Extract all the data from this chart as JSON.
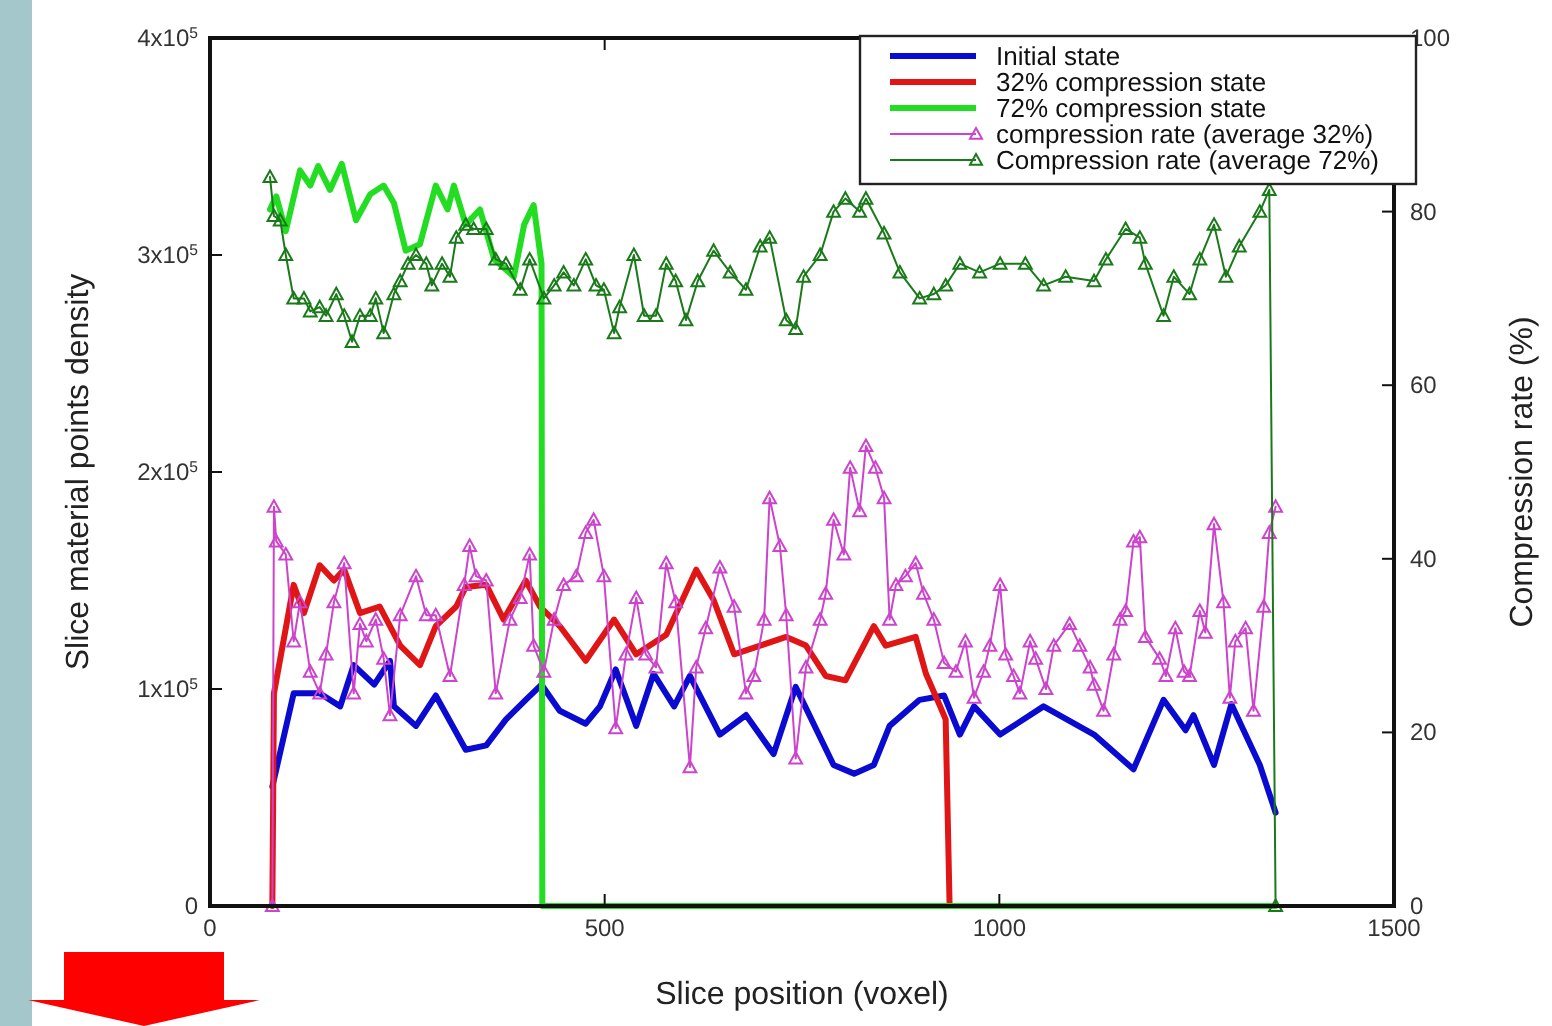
{
  "chart_data": {
    "type": "line",
    "xlabel": "Slice position (voxel)",
    "ylabel": "Slice material points density",
    "y2label": "Compression rate (%)",
    "xlim": [
      0,
      1500
    ],
    "xticks": [
      0,
      500,
      1000,
      1500
    ],
    "ylim": [
      0,
      400000
    ],
    "yticks": [
      0,
      {
        "value": 100000,
        "label": "1x10$^{5}$"
      },
      {
        "value": 200000,
        "label": "2x10$^{5}$"
      },
      {
        "value": 300000,
        "label": "3x10$^{5}$"
      },
      {
        "value": 400000,
        "label": "4x10$^{5}$"
      }
    ],
    "y2lim": [
      0,
      100
    ],
    "y2ticks": [
      0,
      20,
      40,
      60,
      80,
      100
    ],
    "grid": false,
    "legend": "top right",
    "series": [
      {
        "name": "Initial state",
        "color": "#0a0ad0",
        "marker": "none",
        "x": [
          79,
          106,
          139,
          165,
          182,
          208,
          228,
          233,
          261,
          286,
          324,
          350,
          375,
          400,
          420,
          443,
          476,
          494,
          514,
          540,
          562,
          588,
          608,
          646,
          679,
          714,
          742,
          790,
          816,
          841,
          861,
          899,
          930,
          950,
          968,
          1001,
          1056,
          1120,
          1170,
          1208,
          1236,
          1246,
          1272,
          1294,
          1330,
          1350
        ],
        "values": [
          55000,
          98000,
          98000,
          92000,
          111000,
          102000,
          113000,
          92000,
          83000,
          97000,
          72000,
          74000,
          86000,
          95000,
          102000,
          90000,
          84000,
          92000,
          109000,
          83000,
          107000,
          92000,
          106000,
          79000,
          88000,
          70000,
          101000,
          65000,
          61000,
          65000,
          83000,
          95000,
          97000,
          79000,
          92000,
          79000,
          92000,
          79000,
          63000,
          95000,
          81000,
          88000,
          65000,
          93000,
          65000,
          43000
        ]
      },
      {
        "name": "32% compression state",
        "color": "#e01515",
        "marker": "none",
        "x": [
          79,
          81,
          106,
          119,
          139,
          157,
          170,
          190,
          215,
          241,
          266,
          286,
          312,
          324,
          350,
          372,
          400,
          418,
          443,
          476,
          512,
          540,
          578,
          616,
          638,
          664,
          697,
          730,
          755,
          780,
          805,
          841,
          856,
          894,
          907,
          925,
          932,
          937
        ],
        "values": [
          0,
          98000,
          148000,
          135000,
          157000,
          150000,
          155000,
          135000,
          138000,
          120000,
          111000,
          129000,
          138000,
          147000,
          148000,
          132000,
          150000,
          138000,
          129000,
          113000,
          132000,
          116000,
          125000,
          155000,
          141000,
          116000,
          120000,
          124000,
          120000,
          106000,
          104000,
          129000,
          120000,
          124000,
          107000,
          92000,
          86000,
          0
        ]
      },
      {
        "name": "72% compression state",
        "color": "#22dd22",
        "marker": "none",
        "x": [
          76,
          84,
          96,
          114,
          127,
          137,
          152,
          167,
          185,
          203,
          220,
          233,
          248,
          266,
          286,
          301,
          309,
          324,
          342,
          360,
          385,
          398,
          410,
          420,
          421,
          1350
        ],
        "values": [
          321000,
          327000,
          311000,
          339000,
          332000,
          341000,
          330000,
          342000,
          316000,
          328000,
          332000,
          324000,
          302000,
          305000,
          332000,
          321000,
          332000,
          314000,
          321000,
          298000,
          290000,
          314000,
          323000,
          296000,
          0,
          0
        ]
      },
      {
        "name": "compression rate (average 32%)",
        "color": "#cc44cc",
        "marker": "triangle",
        "axis": "y2",
        "x": [
          79,
          81,
          84,
          96,
          106,
          114,
          127,
          139,
          147,
          157,
          170,
          182,
          190,
          198,
          210,
          220,
          228,
          241,
          261,
          274,
          286,
          304,
          322,
          329,
          337,
          350,
          362,
          380,
          393,
          405,
          410,
          423,
          436,
          448,
          464,
          476,
          486,
          499,
          514,
          527,
          540,
          552,
          565,
          578,
          590,
          608,
          616,
          628,
          646,
          664,
          679,
          689,
          702,
          709,
          722,
          730,
          742,
          755,
          773,
          780,
          790,
          803,
          811,
          823,
          831,
          843,
          854,
          861,
          869,
          881,
          894,
          904,
          917,
          930,
          945,
          957,
          968,
          980,
          988,
          1001,
          1008,
          1018,
          1026,
          1039,
          1046,
          1059,
          1069,
          1089,
          1102,
          1115,
          1120,
          1132,
          1145,
          1153,
          1160,
          1170,
          1178,
          1185,
          1203,
          1211,
          1223,
          1234,
          1241,
          1254,
          1261,
          1272,
          1284,
          1292,
          1299,
          1312,
          1322,
          1335,
          1342,
          1350
        ],
        "values": [
          0,
          46,
          42,
          40.5,
          30.5,
          35,
          27,
          24.5,
          29,
          35,
          39.5,
          24.5,
          32.5,
          30.5,
          33,
          28.5,
          22,
          33.5,
          38,
          33.5,
          33.5,
          26.5,
          37,
          41.5,
          38,
          37.5,
          24.5,
          33,
          35.5,
          40.5,
          30,
          27,
          33,
          37,
          38,
          43,
          44.5,
          38,
          20.5,
          29,
          35.5,
          29,
          27.5,
          39.5,
          35,
          16,
          27.5,
          32,
          39,
          34.5,
          24.5,
          26.5,
          33,
          47,
          41.5,
          33.5,
          17,
          27.5,
          33,
          36,
          44.5,
          40.5,
          50.5,
          45.5,
          53,
          50.5,
          47,
          33,
          37,
          38,
          39.5,
          36,
          33,
          28,
          27,
          30.5,
          24,
          27,
          30,
          37,
          29,
          26.5,
          24.5,
          30.5,
          28.5,
          25,
          30,
          32.5,
          30,
          27.5,
          25.5,
          22.5,
          29,
          33,
          34,
          42,
          42.5,
          31,
          28.5,
          26.5,
          32,
          27,
          26.5,
          34,
          31.5,
          44,
          35,
          24,
          30.5,
          32,
          22.5,
          34.5,
          43,
          46
        ]
      },
      {
        "name": "Compression rate (average 72%)",
        "color": "#1a7a1a",
        "marker": "triangle",
        "axis": "y2",
        "x": [
          76,
          81,
          89,
          96,
          106,
          119,
          127,
          139,
          147,
          160,
          170,
          180,
          190,
          203,
          210,
          220,
          233,
          241,
          251,
          261,
          274,
          281,
          294,
          304,
          312,
          324,
          334,
          350,
          362,
          375,
          393,
          405,
          423,
          436,
          448,
          461,
          476,
          489,
          499,
          512,
          519,
          537,
          550,
          565,
          578,
          590,
          603,
          618,
          638,
          659,
          679,
          697,
          709,
          730,
          742,
          752,
          773,
          790,
          805,
          823,
          831,
          854,
          874,
          899,
          917,
          932,
          950,
          975,
          1001,
          1033,
          1056,
          1084,
          1120,
          1135,
          1160,
          1178,
          1185,
          1208,
          1221,
          1241,
          1254,
          1272,
          1287,
          1304,
          1330,
          1342,
          1350
        ],
        "values": [
          84,
          79.5,
          79,
          75,
          70,
          70,
          68.5,
          69,
          68,
          70.5,
          68,
          65,
          68,
          68,
          70,
          66,
          70.5,
          72,
          74,
          75,
          74,
          71.5,
          74,
          72.5,
          77,
          78.5,
          78,
          78,
          74.5,
          74,
          71,
          74.5,
          70,
          71.5,
          73,
          71.5,
          74.5,
          71.5,
          71,
          66,
          69,
          75,
          68,
          68,
          74,
          72,
          67.5,
          72,
          75.5,
          73,
          71,
          76,
          77,
          67.5,
          66.5,
          72.5,
          75,
          80,
          81.5,
          80,
          81.5,
          77.5,
          73,
          70,
          70.5,
          71.5,
          74,
          73,
          74,
          74,
          71.5,
          72.5,
          72,
          74.5,
          78,
          77,
          74,
          68,
          72.5,
          70.5,
          74.5,
          78.5,
          72.5,
          76,
          80,
          82.5,
          0
        ]
      }
    ]
  }
}
